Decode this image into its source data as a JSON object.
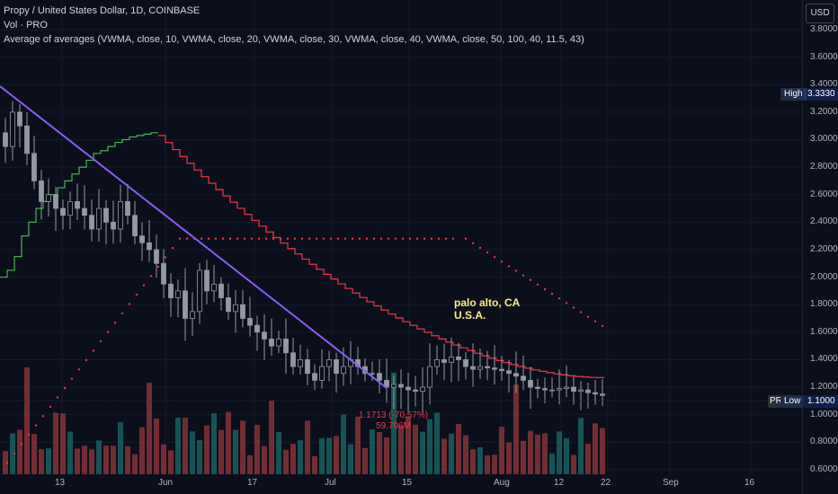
{
  "legend": {
    "title": "Propy / United States Dollar, 1D, COINBASE",
    "volume": "Vol · PRO",
    "indicator": "Average of averages (VWMA, close, 10, VWMA, close, 20, VWMA, close, 30, VWMA, close, 40, VWMA, close, 50, 100, 40, 11.5, 43)"
  },
  "currency_button": "USD",
  "high_tag": {
    "label": "High",
    "value": "3.3330"
  },
  "low_tag": {
    "label": "Low",
    "value": "1.1000",
    "prefix": "PRO"
  },
  "y_axis_labels": [
    "3.8000",
    "3.6000",
    "3.4000",
    "3.2000",
    "3.0000",
    "2.8000",
    "2.6000",
    "2.4000",
    "2.2000",
    "2.0000",
    "1.8000",
    "1.6000",
    "1.4000",
    "1.2000",
    "1.0000",
    "0.8000",
    "0.6000"
  ],
  "x_axis_labels": [
    "13",
    "Jun",
    "17",
    "Jul",
    "15",
    "Aug",
    "12",
    "22",
    "Sep",
    "16"
  ],
  "annotation": {
    "line1": "palo alto, CA",
    "line2": "U.S.A."
  },
  "change_info": {
    "line1": "1.1713 (-70.57%)",
    "line2": "59.706M"
  },
  "colors": {
    "up": "#26a69a",
    "down": "#ef5350",
    "candle": "#9598a1",
    "trendline": "#8b5cf6",
    "avg_green": "#4caf50",
    "avg_red": "#f23645",
    "dotted": "#f23645",
    "bg": "#0b0f1c",
    "annotation": "#ffeb84"
  },
  "chart_data": {
    "type": "candlestick",
    "y_range": [
      0.6,
      3.9
    ],
    "close_series": [
      2.95,
      3.2,
      3.1,
      2.9,
      2.7,
      2.55,
      2.6,
      2.5,
      2.45,
      2.55,
      2.5,
      2.45,
      2.35,
      2.5,
      2.4,
      2.35,
      2.55,
      2.45,
      2.3,
      2.25,
      2.2,
      2.1,
      1.95,
      1.85,
      1.9,
      1.7,
      1.75,
      2.05,
      1.9,
      1.95,
      1.85,
      1.75,
      1.8,
      1.7,
      1.65,
      1.6,
      1.55,
      1.5,
      1.55,
      1.45,
      1.35,
      1.4,
      1.3,
      1.25,
      1.35,
      1.4,
      1.3,
      1.35,
      1.4,
      1.35,
      1.3,
      1.3,
      1.25,
      1.2,
      1.22,
      1.2,
      1.18,
      1.17,
      1.2,
      1.35,
      1.4,
      1.38,
      1.42,
      1.4,
      1.35,
      1.33,
      1.35,
      1.34,
      1.33,
      1.32,
      1.3,
      1.28,
      1.25,
      1.2,
      1.19,
      1.18,
      1.18,
      1.19,
      1.2,
      1.17,
      1.18,
      1.16,
      1.15,
      1.14
    ],
    "avg_green_end": 3.05,
    "avg_red_end": 1.27,
    "low_value": 1.1,
    "high_value": 3.333
  }
}
